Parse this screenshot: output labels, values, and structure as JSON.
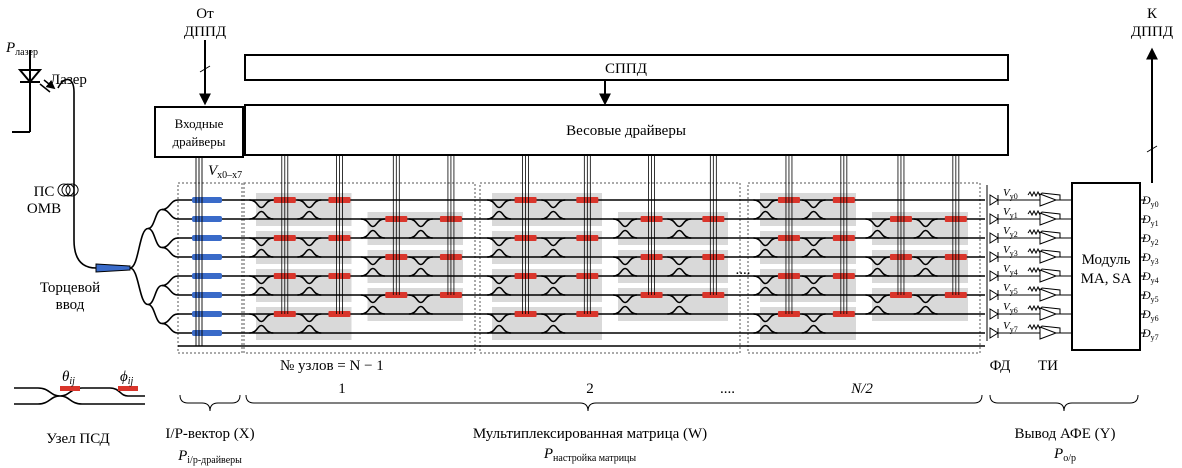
{
  "laser": {
    "power_symbol": "P",
    "power_sub": "лазер",
    "label": "Лазер"
  },
  "fiber": {
    "label_lines": [
      "ПС",
      "ОМВ"
    ]
  },
  "coupler": {
    "label_lines": [
      "Торцевой",
      "ввод"
    ]
  },
  "input": {
    "from_lines": [
      "От",
      "ДППД"
    ],
    "drivers_lines": [
      "Входные",
      "драйверы"
    ],
    "voltage_symbol": "V",
    "voltage_sub": "x0–x7"
  },
  "control": {
    "label": "СППД"
  },
  "weight_drivers": {
    "label": "Весовые драйверы"
  },
  "matrix": {
    "node_count_label": "№ узлов = N − 1",
    "blocks": [
      "1",
      "2",
      "N/2"
    ],
    "ellipsis": "...."
  },
  "output": {
    "detector_label": "ФД",
    "amp_label": "ТИ",
    "voltages": [
      {
        "symbol": "V",
        "sub": "y0"
      },
      {
        "symbol": "V",
        "sub": "y1"
      },
      {
        "symbol": "V",
        "sub": "y2"
      },
      {
        "symbol": "V",
        "sub": "y3"
      },
      {
        "symbol": "V",
        "sub": "y4"
      },
      {
        "symbol": "V",
        "sub": "y5"
      },
      {
        "symbol": "V",
        "sub": "y6"
      },
      {
        "symbol": "V",
        "sub": "y7"
      }
    ],
    "module_lines": [
      "Модуль",
      "MA, SA"
    ],
    "to_lines": [
      "К",
      "ДППД"
    ],
    "outputs": [
      {
        "symbol": "D",
        "sub": "y0"
      },
      {
        "symbol": "D",
        "sub": "y1"
      },
      {
        "symbol": "D",
        "sub": "y2"
      },
      {
        "symbol": "D",
        "sub": "y3"
      },
      {
        "symbol": "D",
        "sub": "y4"
      },
      {
        "symbol": "D",
        "sub": "y5"
      },
      {
        "symbol": "D",
        "sub": "y6"
      },
      {
        "symbol": "D",
        "sub": "y7"
      }
    ]
  },
  "legend": {
    "theta": "θ",
    "theta_sub": "ij",
    "phi": "ϕ",
    "phi_sub": "ij",
    "label": "Узел ПСД"
  },
  "sections": [
    {
      "label": "I/P-вектор (X)",
      "power_symbol": "P",
      "power_sub": "i/p-драйверы"
    },
    {
      "label": "Мультиплексированная матрица (W)",
      "power_symbol": "P",
      "power_sub": "настройка матрицы"
    },
    {
      "label": "Вывод АФЕ (Y)",
      "power_symbol": "P",
      "power_sub": "o/p"
    }
  ]
}
